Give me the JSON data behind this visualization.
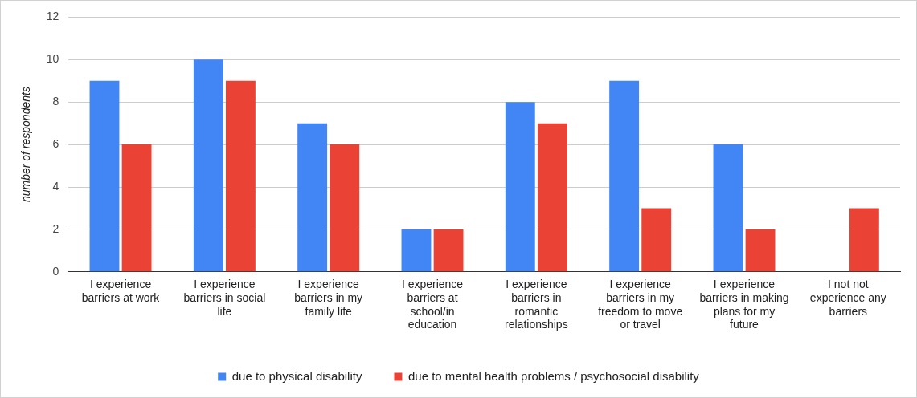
{
  "chart_data": {
    "type": "bar",
    "ylabel": "number of respondents",
    "categories": [
      "I experience barriers at work",
      "I experience barriers in social life",
      "I experience barriers in my family life",
      "I experience barriers at school/in education",
      "I experience barriers in romantic relationships",
      "I experience barriers in my freedom to move or travel",
      "I experience barriers in making plans for my future",
      "I not not experience any barriers"
    ],
    "series": [
      {
        "name": "due to physical disability",
        "color": "#4285f4",
        "values": [
          9,
          10,
          7,
          2,
          8,
          9,
          6,
          0
        ]
      },
      {
        "name": "due to mental health problems / psychosocial disability",
        "color": "#ea4335",
        "values": [
          6,
          9,
          6,
          2,
          7,
          3,
          2,
          3
        ]
      }
    ],
    "ylim": [
      0,
      12
    ],
    "yticks": [
      0,
      2,
      4,
      6,
      8,
      10,
      12
    ],
    "grid": "y",
    "legend": "bottom"
  }
}
